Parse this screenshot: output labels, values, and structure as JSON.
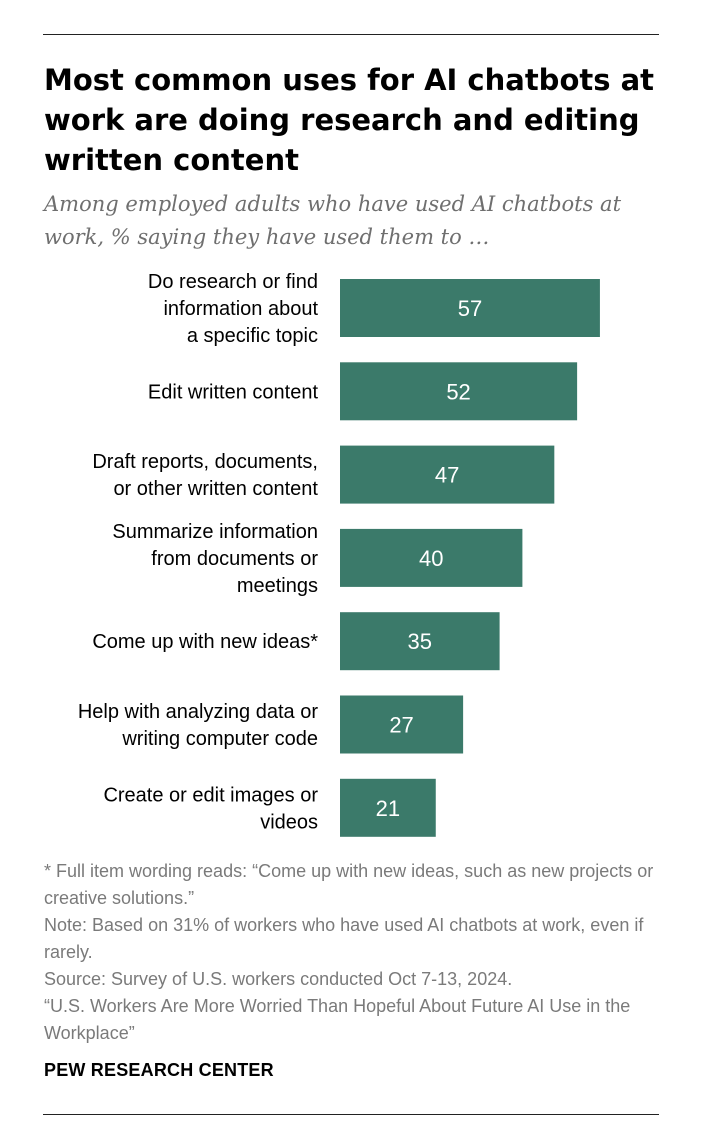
{
  "title": "Most common uses for AI chatbots at work are doing research and editing written content",
  "subtitle": "Among employed adults who have used AI chatbots at work, % saying they have used them to …",
  "colors": {
    "bar": "#3b7a6a",
    "bar_label": "#ffffff"
  },
  "chart_data": {
    "type": "bar",
    "orientation": "horizontal",
    "categories": [
      "Do research or find information about a specific topic",
      "Edit written content",
      "Draft reports, documents, or other written content",
      "Summarize information from documents or meetings",
      "Come up with new ideas*",
      "Help with analyzing data or writing computer code",
      "Create or edit images or videos"
    ],
    "category_lines": [
      [
        "Do research or find",
        "information about",
        "a specific topic"
      ],
      [
        "Edit written content"
      ],
      [
        "Draft reports, documents,",
        "or other written content"
      ],
      [
        "Summarize information",
        "from documents or",
        "meetings"
      ],
      [
        "Come up with new ideas*"
      ],
      [
        "Help with analyzing data or",
        "writing computer code"
      ],
      [
        "Create or edit images or",
        "videos"
      ]
    ],
    "values": [
      57,
      52,
      47,
      40,
      35,
      27,
      21
    ],
    "xlim": [
      0,
      100
    ],
    "grid": false,
    "data_labels": true
  },
  "notes": {
    "footnote": "* Full item wording reads: “Come up with new ideas, such as new projects or creative solutions.”",
    "note": "Note: Based on 31% of workers who have used AI chatbots at work, even if rarely.",
    "source": "Source: Survey of U.S. workers conducted Oct 7-13, 2024.",
    "report": "“U.S. Workers Are More Worried Than Hopeful About Future AI Use in the Workplace”"
  },
  "brand": "PEW RESEARCH CENTER"
}
